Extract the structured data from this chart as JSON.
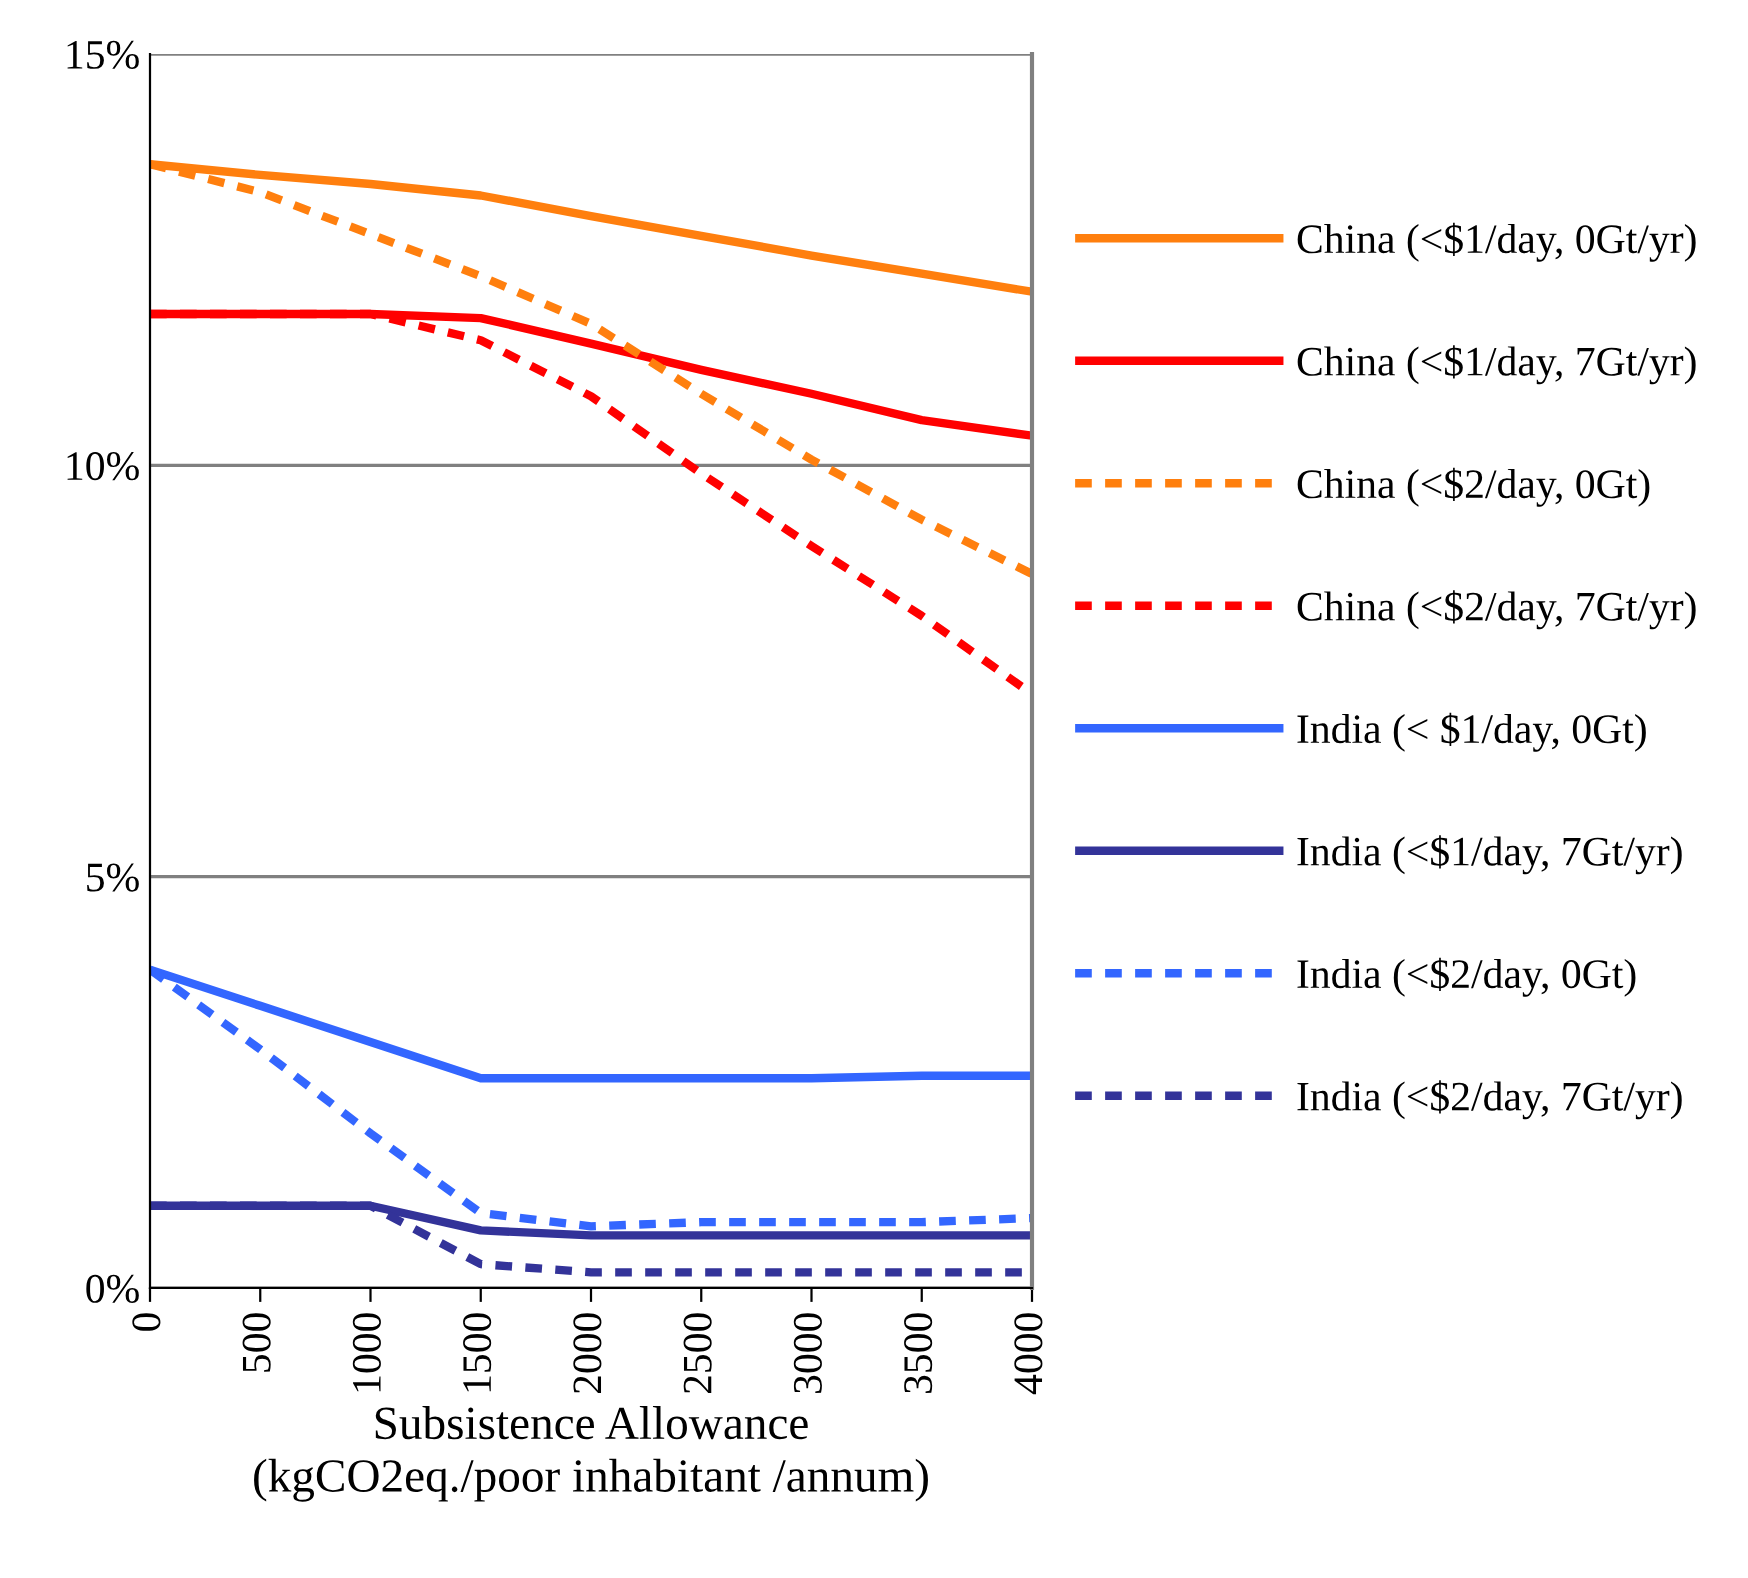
{
  "chart_data": {
    "type": "line",
    "xlabel": "Subsistence Allowance\n(kgCO2eq./poor inhabitant /annum)",
    "x": [
      0,
      500,
      1000,
      1500,
      2000,
      2500,
      3000,
      3500,
      4000
    ],
    "series": [
      {
        "name": "China (<$1/day, 0Gt/yr)",
        "color": "#ff7f0e",
        "line_style": "solid",
        "values": [
          13.66,
          13.53,
          13.42,
          13.28,
          13.03,
          12.79,
          12.55,
          12.33,
          12.11
        ]
      },
      {
        "name": "China (<$1/day, 7Gt/yr)",
        "color": "#ff0000",
        "line_style": "solid",
        "values": [
          11.84,
          11.84,
          11.84,
          11.79,
          11.48,
          11.16,
          10.87,
          10.55,
          10.36
        ]
      },
      {
        "name": "China (<$2/day, 0Gt)",
        "color": "#ff7f0e",
        "line_style": "dashed",
        "values": [
          13.66,
          13.32,
          12.81,
          12.3,
          11.72,
          10.87,
          10.07,
          9.34,
          8.68
        ]
      },
      {
        "name": "China (<$2/day, 7Gt/yr)",
        "color": "#ff0000",
        "line_style": "dashed",
        "values": [
          11.84,
          11.84,
          11.84,
          11.52,
          10.84,
          9.9,
          9.02,
          8.17,
          7.22
        ]
      },
      {
        "name": "India (< $1/day, 0Gt)",
        "color": "#3366ff",
        "line_style": "solid",
        "values": [
          3.87,
          3.43,
          2.99,
          2.55,
          2.55,
          2.55,
          2.55,
          2.58,
          2.58
        ]
      },
      {
        "name": "India (<$1/day, 7Gt/yr)",
        "color": "#333399",
        "line_style": "solid",
        "values": [
          1.0,
          1.0,
          1.0,
          0.7,
          0.64,
          0.64,
          0.64,
          0.64,
          0.64
        ]
      },
      {
        "name": "India (<$2/day, 0Gt)",
        "color": "#3366ff",
        "line_style": "dashed",
        "values": [
          3.87,
          2.9,
          1.88,
          0.91,
          0.75,
          0.8,
          0.8,
          0.8,
          0.85
        ]
      },
      {
        "name": "India (<$2/day, 7Gt/yr)",
        "color": "#333399",
        "line_style": "dashed",
        "values": [
          1.0,
          1.0,
          1.0,
          0.29,
          0.19,
          0.19,
          0.19,
          0.19,
          0.19
        ]
      }
    ],
    "xlim": [
      0,
      4000
    ],
    "xticks": [
      0,
      500,
      1000,
      1500,
      2000,
      2500,
      3000,
      3500,
      4000
    ],
    "ylim": [
      0,
      15
    ],
    "yticks": [
      {
        "value": 0,
        "label": "0%"
      },
      {
        "value": 5,
        "label": "5%"
      },
      {
        "value": 10,
        "label": "10%"
      },
      {
        "value": 15,
        "label": "15%"
      }
    ],
    "grid": "y",
    "legend": "right",
    "marker": "none"
  }
}
